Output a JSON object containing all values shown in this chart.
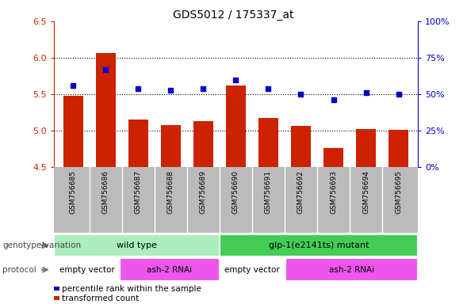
{
  "title": "GDS5012 / 175337_at",
  "samples": [
    "GSM756685",
    "GSM756686",
    "GSM756687",
    "GSM756688",
    "GSM756689",
    "GSM756690",
    "GSM756691",
    "GSM756692",
    "GSM756693",
    "GSM756694",
    "GSM756695"
  ],
  "transformed_count": [
    5.48,
    6.07,
    5.15,
    5.08,
    5.13,
    5.62,
    5.18,
    5.07,
    4.76,
    5.02,
    5.01
  ],
  "percentile_rank": [
    56,
    67,
    54,
    53,
    54,
    60,
    54,
    50,
    46,
    51,
    50
  ],
  "ylim_left": [
    4.5,
    6.5
  ],
  "ylim_right": [
    0,
    100
  ],
  "yticks_left": [
    4.5,
    5.0,
    5.5,
    6.0,
    6.5
  ],
  "yticks_right": [
    0,
    25,
    50,
    75,
    100
  ],
  "ytick_labels_right": [
    "0%",
    "25%",
    "50%",
    "75%",
    "100%"
  ],
  "bar_color": "#CC2200",
  "dot_color": "#0000CC",
  "bar_bottom": 4.5,
  "genotype_groups": [
    {
      "label": "wild type",
      "start": 0,
      "end": 5,
      "color": "#AAEEBB"
    },
    {
      "label": "glp-1(e2141ts) mutant",
      "start": 5,
      "end": 11,
      "color": "#44CC55"
    }
  ],
  "protocol_groups": [
    {
      "label": "empty vector",
      "start": 0,
      "end": 2,
      "color": "#FFFFFF"
    },
    {
      "label": "ash-2 RNAi",
      "start": 2,
      "end": 5,
      "color": "#EE55EE"
    },
    {
      "label": "empty vector",
      "start": 5,
      "end": 7,
      "color": "#FFFFFF"
    },
    {
      "label": "ash-2 RNAi",
      "start": 7,
      "end": 11,
      "color": "#EE55EE"
    }
  ],
  "legend_items": [
    {
      "label": "transformed count",
      "color": "#CC2200",
      "marker": "s"
    },
    {
      "label": "percentile rank within the sample",
      "color": "#0000CC",
      "marker": "s"
    }
  ],
  "label_genotype": "genotype/variation",
  "label_protocol": "protocol",
  "tick_color_left": "#CC2200",
  "tick_color_right": "#0000CC",
  "sample_bg_color": "#BBBBBB",
  "gridline_ticks": [
    5.0,
    5.5,
    6.0
  ]
}
